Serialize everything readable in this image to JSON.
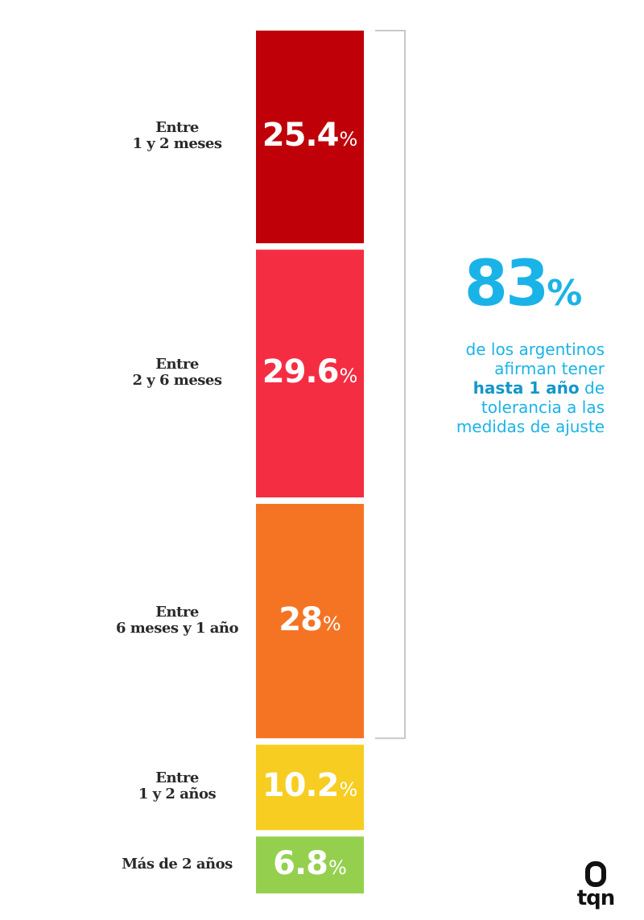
{
  "chart_data": {
    "type": "bar",
    "layout": "stacked-vertical",
    "title": "",
    "xlabel": "",
    "ylabel": "",
    "unit": "%",
    "categories": [
      [
        "Entre",
        "1 y 2 meses"
      ],
      [
        "Entre",
        "2 y 6 meses"
      ],
      [
        "Entre",
        "6 meses y 1 año"
      ],
      [
        "Entre",
        "1 y 2 años"
      ],
      [
        "Más de 2 años"
      ]
    ],
    "values": [
      25.4,
      29.6,
      28,
      10.2,
      6.8
    ],
    "value_labels": [
      "25.4",
      "29.6",
      "28",
      "10.2",
      "6.8"
    ],
    "colors": [
      "#bf0008",
      "#f42d43",
      "#f47424",
      "#f7cd21",
      "#94d04e"
    ],
    "bracket_covers_categories": [
      0,
      1,
      2
    ]
  },
  "summary": {
    "big_number": "83",
    "big_number_unit": "%",
    "line1": "de los argentinos",
    "line2": "afirman tener",
    "line3_bold": "hasta 1 año",
    "line3_rest": " de",
    "line4": "tolerancia a las",
    "line5": "medidas de ajuste",
    "color": "#1ab3e8"
  },
  "logo": {
    "text": "tqn"
  }
}
